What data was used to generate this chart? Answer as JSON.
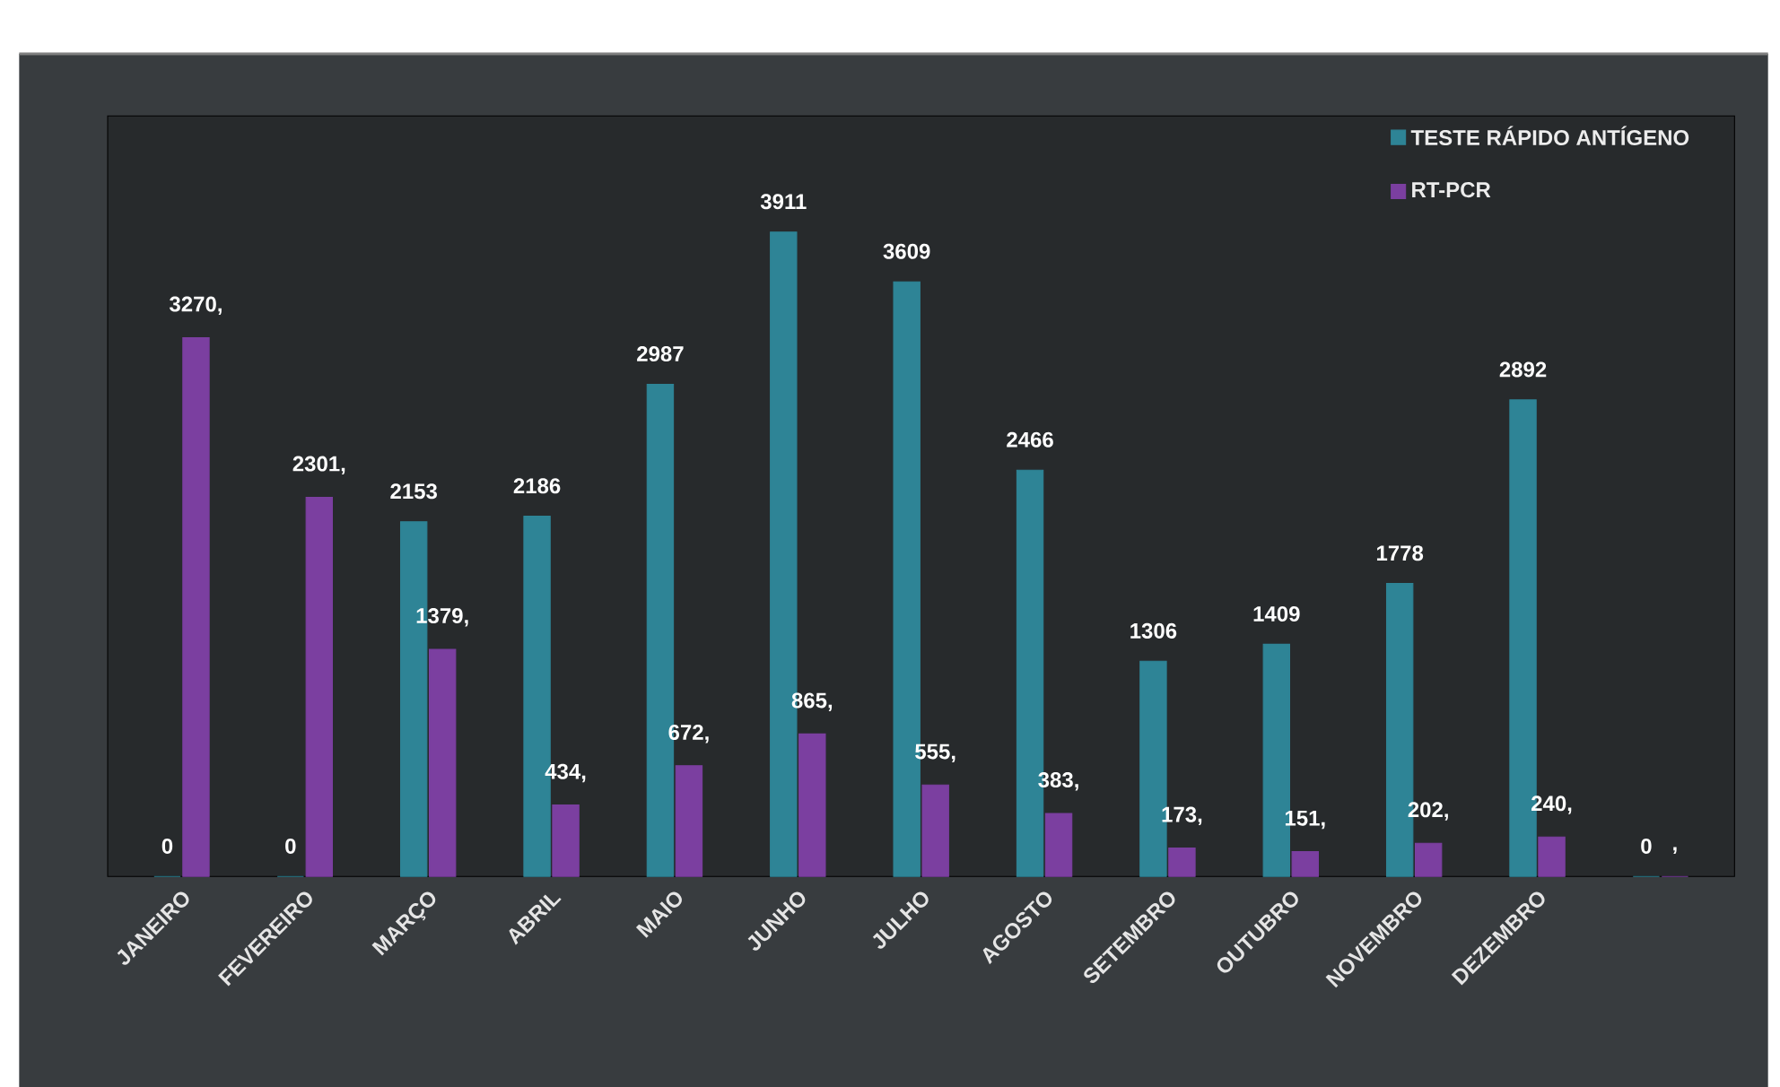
{
  "chart_data": {
    "type": "bar",
    "categories": [
      "JANEIRO",
      "FEVEREIRO",
      "MARÇO",
      "ABRIL",
      "MAIO",
      "JUNHO",
      "JULHO",
      "AGOSTO",
      "SETEMBRO",
      "OUTUBRO",
      "NOVEMBRO",
      "DEZEMBRO",
      null
    ],
    "series": [
      {
        "name": "TESTE RÁPIDO ANTÍGENO",
        "color": "#2e8496",
        "values": [
          0,
          0,
          2153,
          2186,
          2987,
          3911,
          3609,
          2466,
          1306,
          1409,
          1778,
          2892,
          0
        ],
        "value_labels": [
          "0",
          "0",
          "2153",
          "2186",
          "2987",
          "3911",
          "3609",
          "2466",
          "1306",
          "1409",
          "1778",
          "2892",
          "0"
        ]
      },
      {
        "name": "RT-PCR",
        "color": "#7b3fa0",
        "values": [
          3270,
          2301,
          1379,
          434,
          672,
          865,
          555,
          383,
          173,
          151,
          202,
          240,
          0
        ],
        "value_labels": [
          "3270,",
          "2301,",
          "1379,",
          "434,",
          "672,",
          "865,",
          "555,",
          "383,",
          "173,",
          "151,",
          "202,",
          "240,",
          ","
        ]
      }
    ],
    "legend": "top right"
  }
}
